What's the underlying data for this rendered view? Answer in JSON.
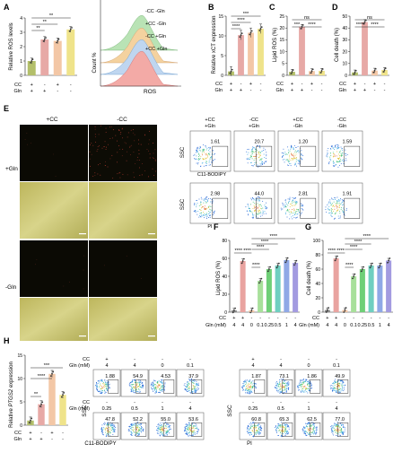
{
  "panel_letters": {
    "A": "A",
    "B": "B",
    "C": "C",
    "D": "D",
    "E": "E",
    "F": "F",
    "G": "G",
    "H": "H"
  },
  "colors": {
    "grey": "#8c8c8c",
    "olive": "#b3bf6a",
    "pink": "#e7a9a6",
    "peach": "#f3c7a6",
    "yellow": "#efe38a",
    "salmon": "#e9a3a0",
    "lgreen": "#a8e09b",
    "green": "#6fcf77",
    "teal": "#6fcfc0",
    "blue": "#8fa8e6",
    "purple": "#a39be0",
    "fluor_dark": "#0b0a04",
    "bright": "#c9c46a"
  },
  "row_labels": {
    "cc": "CC",
    "gln": "Gln",
    "gln_mm": "Gln (mM)",
    "cc_sym": [
      "+",
      "-",
      "+",
      "-"
    ],
    "gln_sym": [
      "+",
      "+",
      "-",
      "-"
    ]
  },
  "sig": {
    "s2": "**",
    "s3": "***",
    "s4": "****",
    "ns": "ns"
  },
  "fig_A": {
    "ylabel": "Relative ROS levels",
    "hist_legend": [
      "-CC -Gln",
      "+CC -Gln",
      "-CC +Gln",
      "+CC +Gln"
    ],
    "hist_xlabel": "ROS",
    "hist_ylabel": "Count %"
  },
  "fig_B": {
    "ylabel": "Relative xCT expression"
  },
  "fig_C": {
    "ylabel": "Lipid ROS (%)"
  },
  "fig_D": {
    "ylabel": "Cell death (%)"
  },
  "fig_E": {
    "col_pcc": "+CC",
    "col_mcc": "-CC",
    "row_pgln": "+Gln",
    "row_mgln": "-Gln",
    "flow_headers": [
      "+CC\n+Gln",
      "-CC\n+Gln",
      "+CC\n-Gln",
      "-CC\n-Gln"
    ],
    "ssc": "SSC",
    "c11": "C11-BODIPY",
    "pi": "PI",
    "row1_vals": [
      "1.61",
      "20.7",
      "1.20",
      "1.59"
    ],
    "row2_vals": [
      "2.98",
      "44.0",
      "2.81",
      "1.91"
    ]
  },
  "fig_F": {
    "ylabel": "Lipid ROS (%)",
    "cc_sym": [
      "+",
      "+",
      "-",
      "-",
      "-",
      "-",
      "-",
      "-"
    ],
    "gln_vals": [
      "4",
      "4",
      "0",
      "0.1",
      "0.25",
      "0.5",
      "1",
      "4"
    ]
  },
  "fig_G": {
    "ylabel": "Cell death (%)",
    "cc_sym": [
      "+",
      "+",
      "-",
      "-",
      "-",
      "-",
      "-",
      "-"
    ],
    "gln_vals": [
      "4",
      "4",
      "0",
      "0.1",
      "0.25",
      "0.5",
      "1",
      "4"
    ]
  },
  "fig_H": {
    "ylabel_pre": "Relative ",
    "ylabel_it": "PTGS2",
    "ylabel_post": " expression",
    "ssc": "SSC",
    "c11": "C11-BODIPY",
    "pi": "PI",
    "hdr_cc": [
      "+",
      "-",
      "-",
      "-"
    ],
    "hdr_gln": [
      "4",
      "4",
      "0",
      "0.1"
    ],
    "mid_cc": [
      "-",
      "-",
      "-",
      "-"
    ],
    "mid_gln": [
      "0.25",
      "0.5",
      "1",
      "4"
    ],
    "c11_row1": [
      "1.88",
      "54.9",
      "4.53",
      "37.9"
    ],
    "c11_row2": [
      "47.8",
      "52.2",
      "55.0",
      "53.6"
    ],
    "pi_row1": [
      "1.87",
      "73.1",
      "1.86",
      "49.9"
    ],
    "pi_row2": [
      "60.8",
      "65.3",
      "62.5",
      "77.0"
    ]
  },
  "chart_data": [
    {
      "type": "bar",
      "title": "A",
      "ylabel": "Relative ROS levels",
      "categories": [
        "+CC +Gln",
        "-CC +Gln",
        "+CC -Gln",
        "-CC -Gln"
      ],
      "values": [
        1.0,
        2.5,
        2.4,
        3.2
      ],
      "ylim": [
        0,
        4
      ]
    },
    {
      "type": "bar",
      "title": "B",
      "ylabel": "Relative xCT expression",
      "categories": [
        "+CC +Gln",
        "-CC +Gln",
        "+CC -Gln",
        "-CC -Gln"
      ],
      "values": [
        1.0,
        10.2,
        10.8,
        11.8
      ],
      "ylim": [
        0,
        15
      ]
    },
    {
      "type": "bar",
      "title": "C",
      "ylabel": "Lipid ROS (%)",
      "categories": [
        "+CC +Gln",
        "-CC +Gln",
        "+CC -Gln",
        "-CC -Gln"
      ],
      "values": [
        1.5,
        20.5,
        1.8,
        1.9
      ],
      "ylim": [
        0,
        25
      ]
    },
    {
      "type": "bar",
      "title": "D",
      "ylabel": "Cell death (%)",
      "categories": [
        "+CC +Gln",
        "-CC +Gln",
        "+CC -Gln",
        "-CC -Gln"
      ],
      "values": [
        2.5,
        45,
        4,
        4.5
      ],
      "ylim": [
        0,
        50
      ]
    },
    {
      "type": "bar",
      "title": "F",
      "ylabel": "Lipid ROS (%)",
      "categories": [
        "1",
        "2",
        "3",
        "4",
        "5",
        "6",
        "7",
        "8"
      ],
      "values": [
        2,
        57,
        2,
        35,
        48,
        52,
        58,
        55
      ],
      "ylim": [
        0,
        80
      ]
    },
    {
      "type": "bar",
      "title": "G",
      "ylabel": "Cell death (%)",
      "categories": [
        "1",
        "2",
        "3",
        "4",
        "5",
        "6",
        "7",
        "8"
      ],
      "values": [
        3,
        75,
        3,
        50,
        60,
        65,
        65,
        72
      ],
      "ylim": [
        0,
        100
      ]
    },
    {
      "type": "bar",
      "title": "H",
      "ylabel": "Relative PTGS2 expression",
      "categories": [
        "+CC +Gln",
        "-CC +Gln",
        "+CC -Gln",
        "-CC -Gln"
      ],
      "values": [
        1.0,
        4.5,
        11.0,
        6.5
      ],
      "ylim": [
        0,
        15
      ]
    }
  ]
}
